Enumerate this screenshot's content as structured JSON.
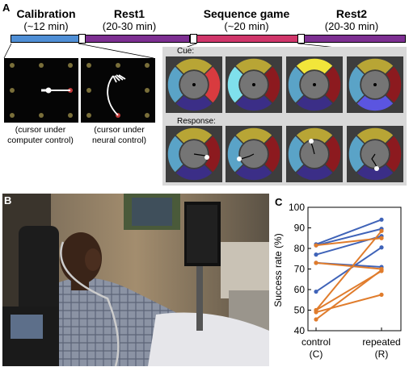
{
  "panel_a": {
    "label": "A",
    "phases": [
      {
        "title": "Calibration",
        "duration": "(~12 min)",
        "color": "#4f8fd6"
      },
      {
        "title": "Rest1",
        "duration": "(20-30 min)",
        "color": "#7d2f92"
      },
      {
        "title": "Sequence game",
        "duration": "(~20 min)",
        "color": "#d0366a"
      },
      {
        "title": "Rest2",
        "duration": "(20-30 min)",
        "color": "#7d2f92"
      }
    ],
    "caption_left": [
      "(cursor under",
      "computer control)"
    ],
    "caption_right": [
      "(cursor under",
      "neural control)"
    ],
    "cue_label": "Cue:",
    "response_label": "Response:",
    "wheel_colors": {
      "top": "#b8a535",
      "right": "#8c1a1f",
      "bottom": "#3b2e87",
      "left": "#5aa3c7",
      "center": "#757575",
      "highlight_right": "#d93b3f",
      "highlight_left": "#7fe0ec",
      "highlight_top": "#f2e63a",
      "highlight_bottom": "#5b55e0"
    }
  },
  "panel_b": {
    "label": "B"
  },
  "panel_c": {
    "label": "C",
    "ylabel": "Success rate (%)",
    "x_categories": [
      {
        "name": "control",
        "code": "(C)"
      },
      {
        "name": "repeated",
        "code": "(R)"
      }
    ],
    "colors": {
      "blue": "#3f63b8",
      "orange": "#e07c2c"
    }
  },
  "chart_data": {
    "type": "line",
    "categories": [
      "control (C)",
      "repeated (R)"
    ],
    "ylim": [
      40,
      100
    ],
    "yticks": [
      40,
      50,
      60,
      70,
      80,
      90,
      100
    ],
    "ylabel": "Success rate (%)",
    "grid": false,
    "series": [
      {
        "color": "blue",
        "values": [
          82,
          94
        ]
      },
      {
        "color": "blue",
        "values": [
          81.5,
          89.5
        ]
      },
      {
        "color": "blue",
        "values": [
          77,
          86
        ]
      },
      {
        "color": "blue",
        "values": [
          73,
          71
        ]
      },
      {
        "color": "blue",
        "values": [
          59,
          80.5
        ]
      },
      {
        "color": "orange",
        "values": [
          81.5,
          85
        ]
      },
      {
        "color": "orange",
        "values": [
          73,
          70
        ]
      },
      {
        "color": "orange",
        "values": [
          50,
          88.5
        ]
      },
      {
        "color": "orange",
        "values": [
          50,
          69
        ]
      },
      {
        "color": "orange",
        "values": [
          49,
          57.5
        ]
      },
      {
        "color": "orange",
        "values": [
          45.5,
          69.5
        ]
      }
    ]
  }
}
